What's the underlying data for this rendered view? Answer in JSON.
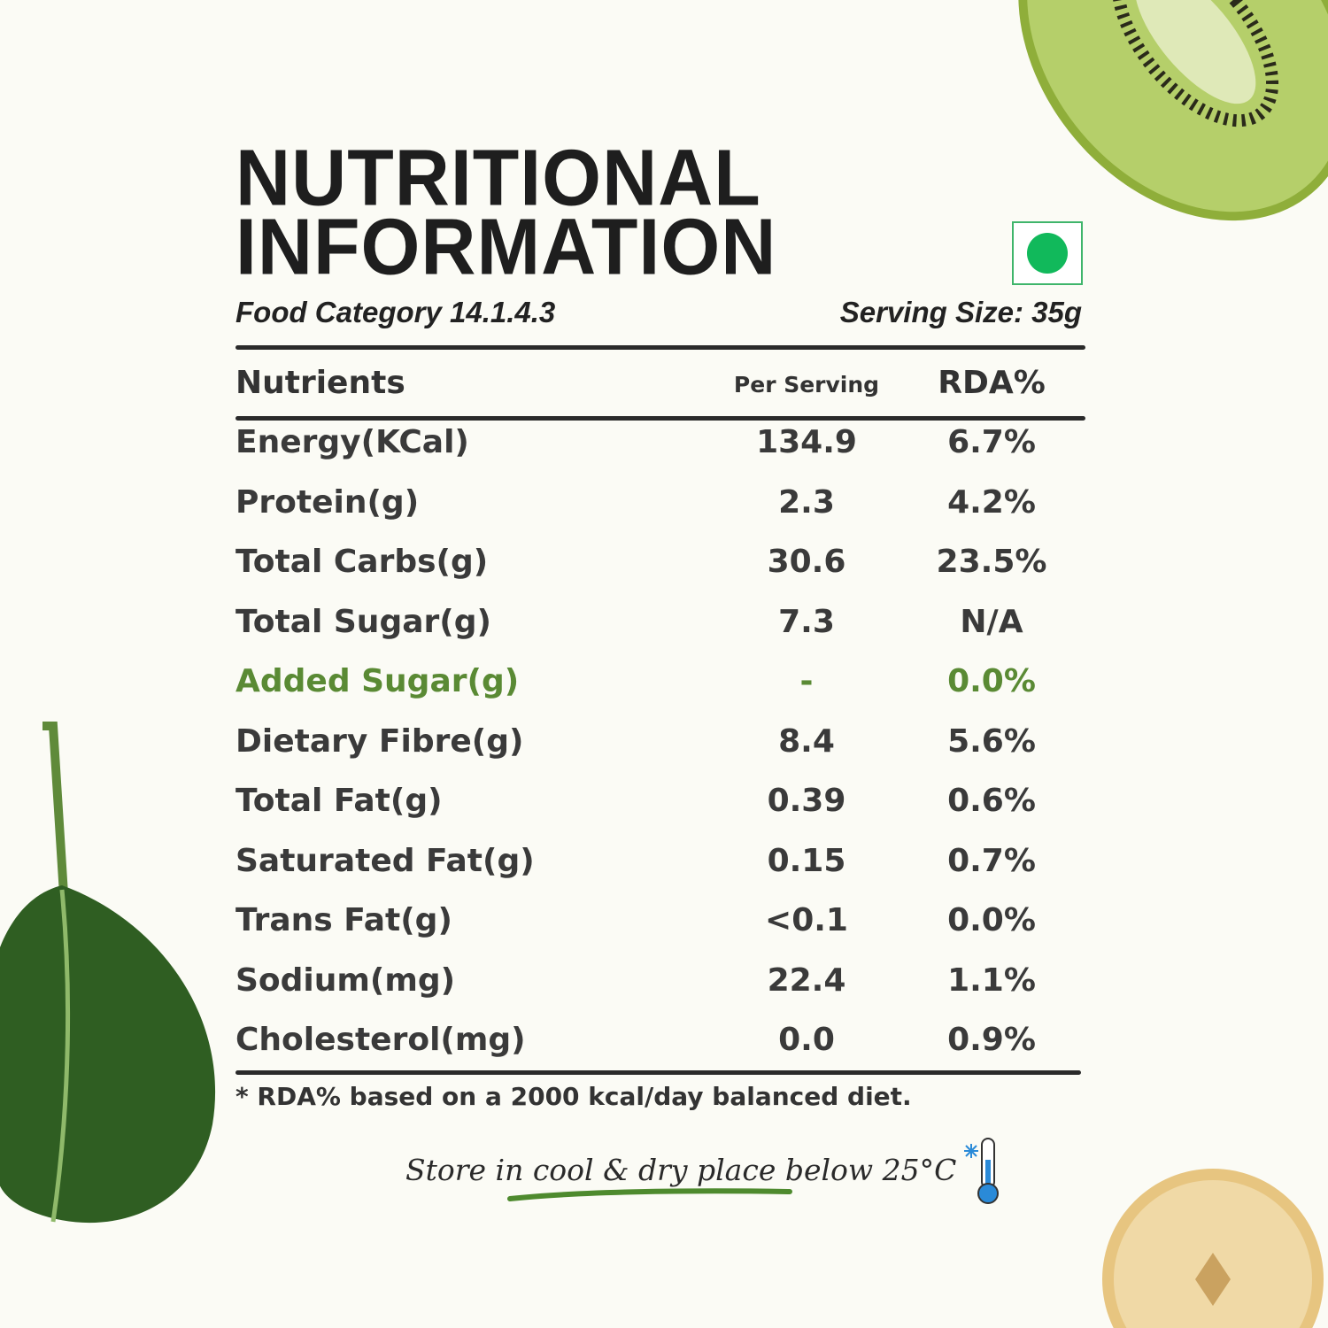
{
  "header": {
    "title_lines": [
      "NUTRITIONAL",
      "INFORMATION"
    ],
    "food_category": "Food Category 14.1.4.3",
    "serving_size": "Serving Size: 35g"
  },
  "table": {
    "columns": [
      "Nutrients",
      "Per Serving",
      "RDA%"
    ],
    "rows": [
      [
        "Energy(KCal)",
        "134.9",
        "6.7%"
      ],
      [
        "Protein(g)",
        "2.3",
        "4.2%"
      ],
      [
        "Total Carbs(g)",
        "30.6",
        "23.5%"
      ],
      [
        "Total Sugar(g)",
        "7.3",
        "N/A"
      ],
      [
        "Added Sugar(g)",
        "-",
        "0.0%"
      ],
      [
        "Dietary Fibre(g)",
        "8.4",
        "5.6%"
      ],
      [
        "Total Fat(g)",
        "0.39",
        "0.6%"
      ],
      [
        "Saturated Fat(g)",
        "0.15",
        "0.7%"
      ],
      [
        "Trans Fat(g)",
        "<0.1",
        "0.0%"
      ],
      [
        "Sodium(mg)",
        "22.4",
        "1.1%"
      ],
      [
        "Cholesterol(mg)",
        "0.0",
        "0.9%"
      ]
    ]
  },
  "footnote": "* RDA% based on a 2000 kcal/day balanced diet.",
  "storage": "Store in cool & dry place below 25°C"
}
